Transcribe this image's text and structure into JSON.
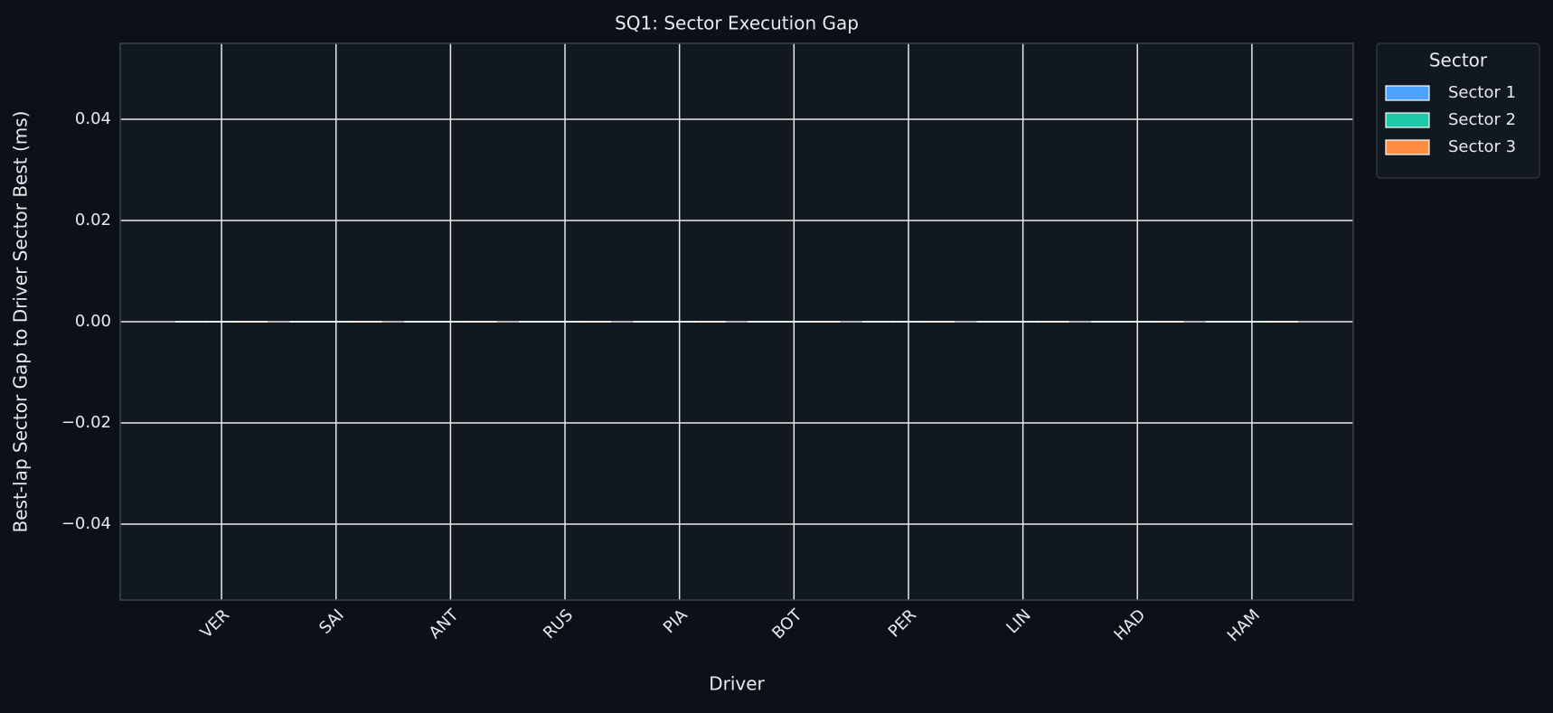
{
  "chart_data": {
    "type": "bar",
    "title": "SQ1: Sector Execution Gap",
    "x_label": "Driver",
    "y_label": "Best-lap Sector Gap to Driver Sector Best (ms)",
    "categories": [
      "VER",
      "SAI",
      "ANT",
      "RUS",
      "PIA",
      "BOT",
      "PER",
      "LIN",
      "HAD",
      "HAM"
    ],
    "series": [
      {
        "name": "Sector 1",
        "color": "#4da3ff",
        "values": [
          0,
          0,
          0,
          0,
          0,
          0,
          0,
          0,
          0,
          0
        ]
      },
      {
        "name": "Sector 2",
        "color": "#1fc8a8",
        "values": [
          0,
          0,
          0,
          0,
          0,
          0,
          0,
          0,
          0,
          0
        ]
      },
      {
        "name": "Sector 3",
        "color": "#ff8c42",
        "values": [
          0,
          0,
          0,
          0,
          0,
          0,
          0,
          0,
          0,
          0
        ]
      }
    ],
    "legend_title": "Sector",
    "legend_position": "outside-upper-right",
    "ylim": [
      -0.055,
      0.055
    ],
    "yticks": [
      {
        "value": -0.04,
        "label": "−0.04"
      },
      {
        "value": -0.02,
        "label": "−0.02"
      },
      {
        "value": 0,
        "label": "0.00"
      },
      {
        "value": 0.02,
        "label": "0.02"
      },
      {
        "value": 0.04,
        "label": "0.04"
      }
    ],
    "grid": true
  }
}
